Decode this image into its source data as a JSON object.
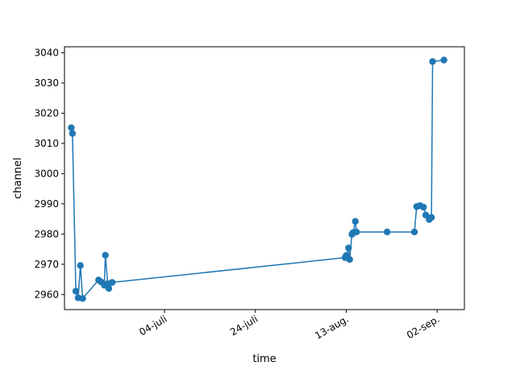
{
  "chart_data": {
    "type": "line",
    "title": "",
    "xlabel": "time",
    "ylabel": "channel",
    "grid": false,
    "line_color": "#1f77b4",
    "marker": "circle",
    "ylim": [
      2955,
      3042
    ],
    "yticks": [
      2960,
      2970,
      2980,
      2990,
      3000,
      3010,
      3020,
      3030,
      3040
    ],
    "xlim": [
      "2023-06-12",
      "2023-09-08"
    ],
    "xticks": [
      {
        "date": "2023-07-04",
        "label": "04-juli"
      },
      {
        "date": "2023-07-24",
        "label": "24-juli"
      },
      {
        "date": "2023-08-13",
        "label": "13-aug."
      },
      {
        "date": "2023-09-02",
        "label": "02-sep."
      }
    ],
    "series": [
      {
        "points": [
          {
            "x": "2023-06-13T12:00",
            "y": 3015.2
          },
          {
            "x": "2023-06-13T18:00",
            "y": 3013.3
          },
          {
            "x": "2023-06-14T12:00",
            "y": 2961.1
          },
          {
            "x": "2023-06-15T00:00",
            "y": 2958.9
          },
          {
            "x": "2023-06-15T12:00",
            "y": 2969.6
          },
          {
            "x": "2023-06-16T00:00",
            "y": 2958.7
          },
          {
            "x": "2023-06-19T12:00",
            "y": 2964.8
          },
          {
            "x": "2023-06-20T00:00",
            "y": 2964.2
          },
          {
            "x": "2023-06-20T18:00",
            "y": 2963.1
          },
          {
            "x": "2023-06-21T00:00",
            "y": 2973.0
          },
          {
            "x": "2023-06-21T12:00",
            "y": 2963.6
          },
          {
            "x": "2023-06-21T18:00",
            "y": 2962.0
          },
          {
            "x": "2023-06-22T12:00",
            "y": 2964.0
          },
          {
            "x": "2023-08-12T18:00",
            "y": 2972.2
          },
          {
            "x": "2023-08-13T00:00",
            "y": 2972.9
          },
          {
            "x": "2023-08-13T12:00",
            "y": 2975.4
          },
          {
            "x": "2023-08-13T18:00",
            "y": 2971.6
          },
          {
            "x": "2023-08-14T06:00",
            "y": 2979.9
          },
          {
            "x": "2023-08-14T12:00",
            "y": 2980.5
          },
          {
            "x": "2023-08-15T00:00",
            "y": 2984.2
          },
          {
            "x": "2023-08-15T06:00",
            "y": 2980.7
          },
          {
            "x": "2023-08-22T00:00",
            "y": 2980.7
          },
          {
            "x": "2023-08-28T00:00",
            "y": 2980.7
          },
          {
            "x": "2023-08-28T12:00",
            "y": 2989.1
          },
          {
            "x": "2023-08-29T06:00",
            "y": 2989.4
          },
          {
            "x": "2023-08-30T00:00",
            "y": 2988.9
          },
          {
            "x": "2023-08-30T12:00",
            "y": 2986.3
          },
          {
            "x": "2023-08-31T06:00",
            "y": 2984.8
          },
          {
            "x": "2023-08-31T18:00",
            "y": 2985.5
          },
          {
            "x": "2023-09-01T00:00",
            "y": 3037.1
          },
          {
            "x": "2023-09-03T12:00",
            "y": 3037.6
          }
        ]
      }
    ]
  }
}
